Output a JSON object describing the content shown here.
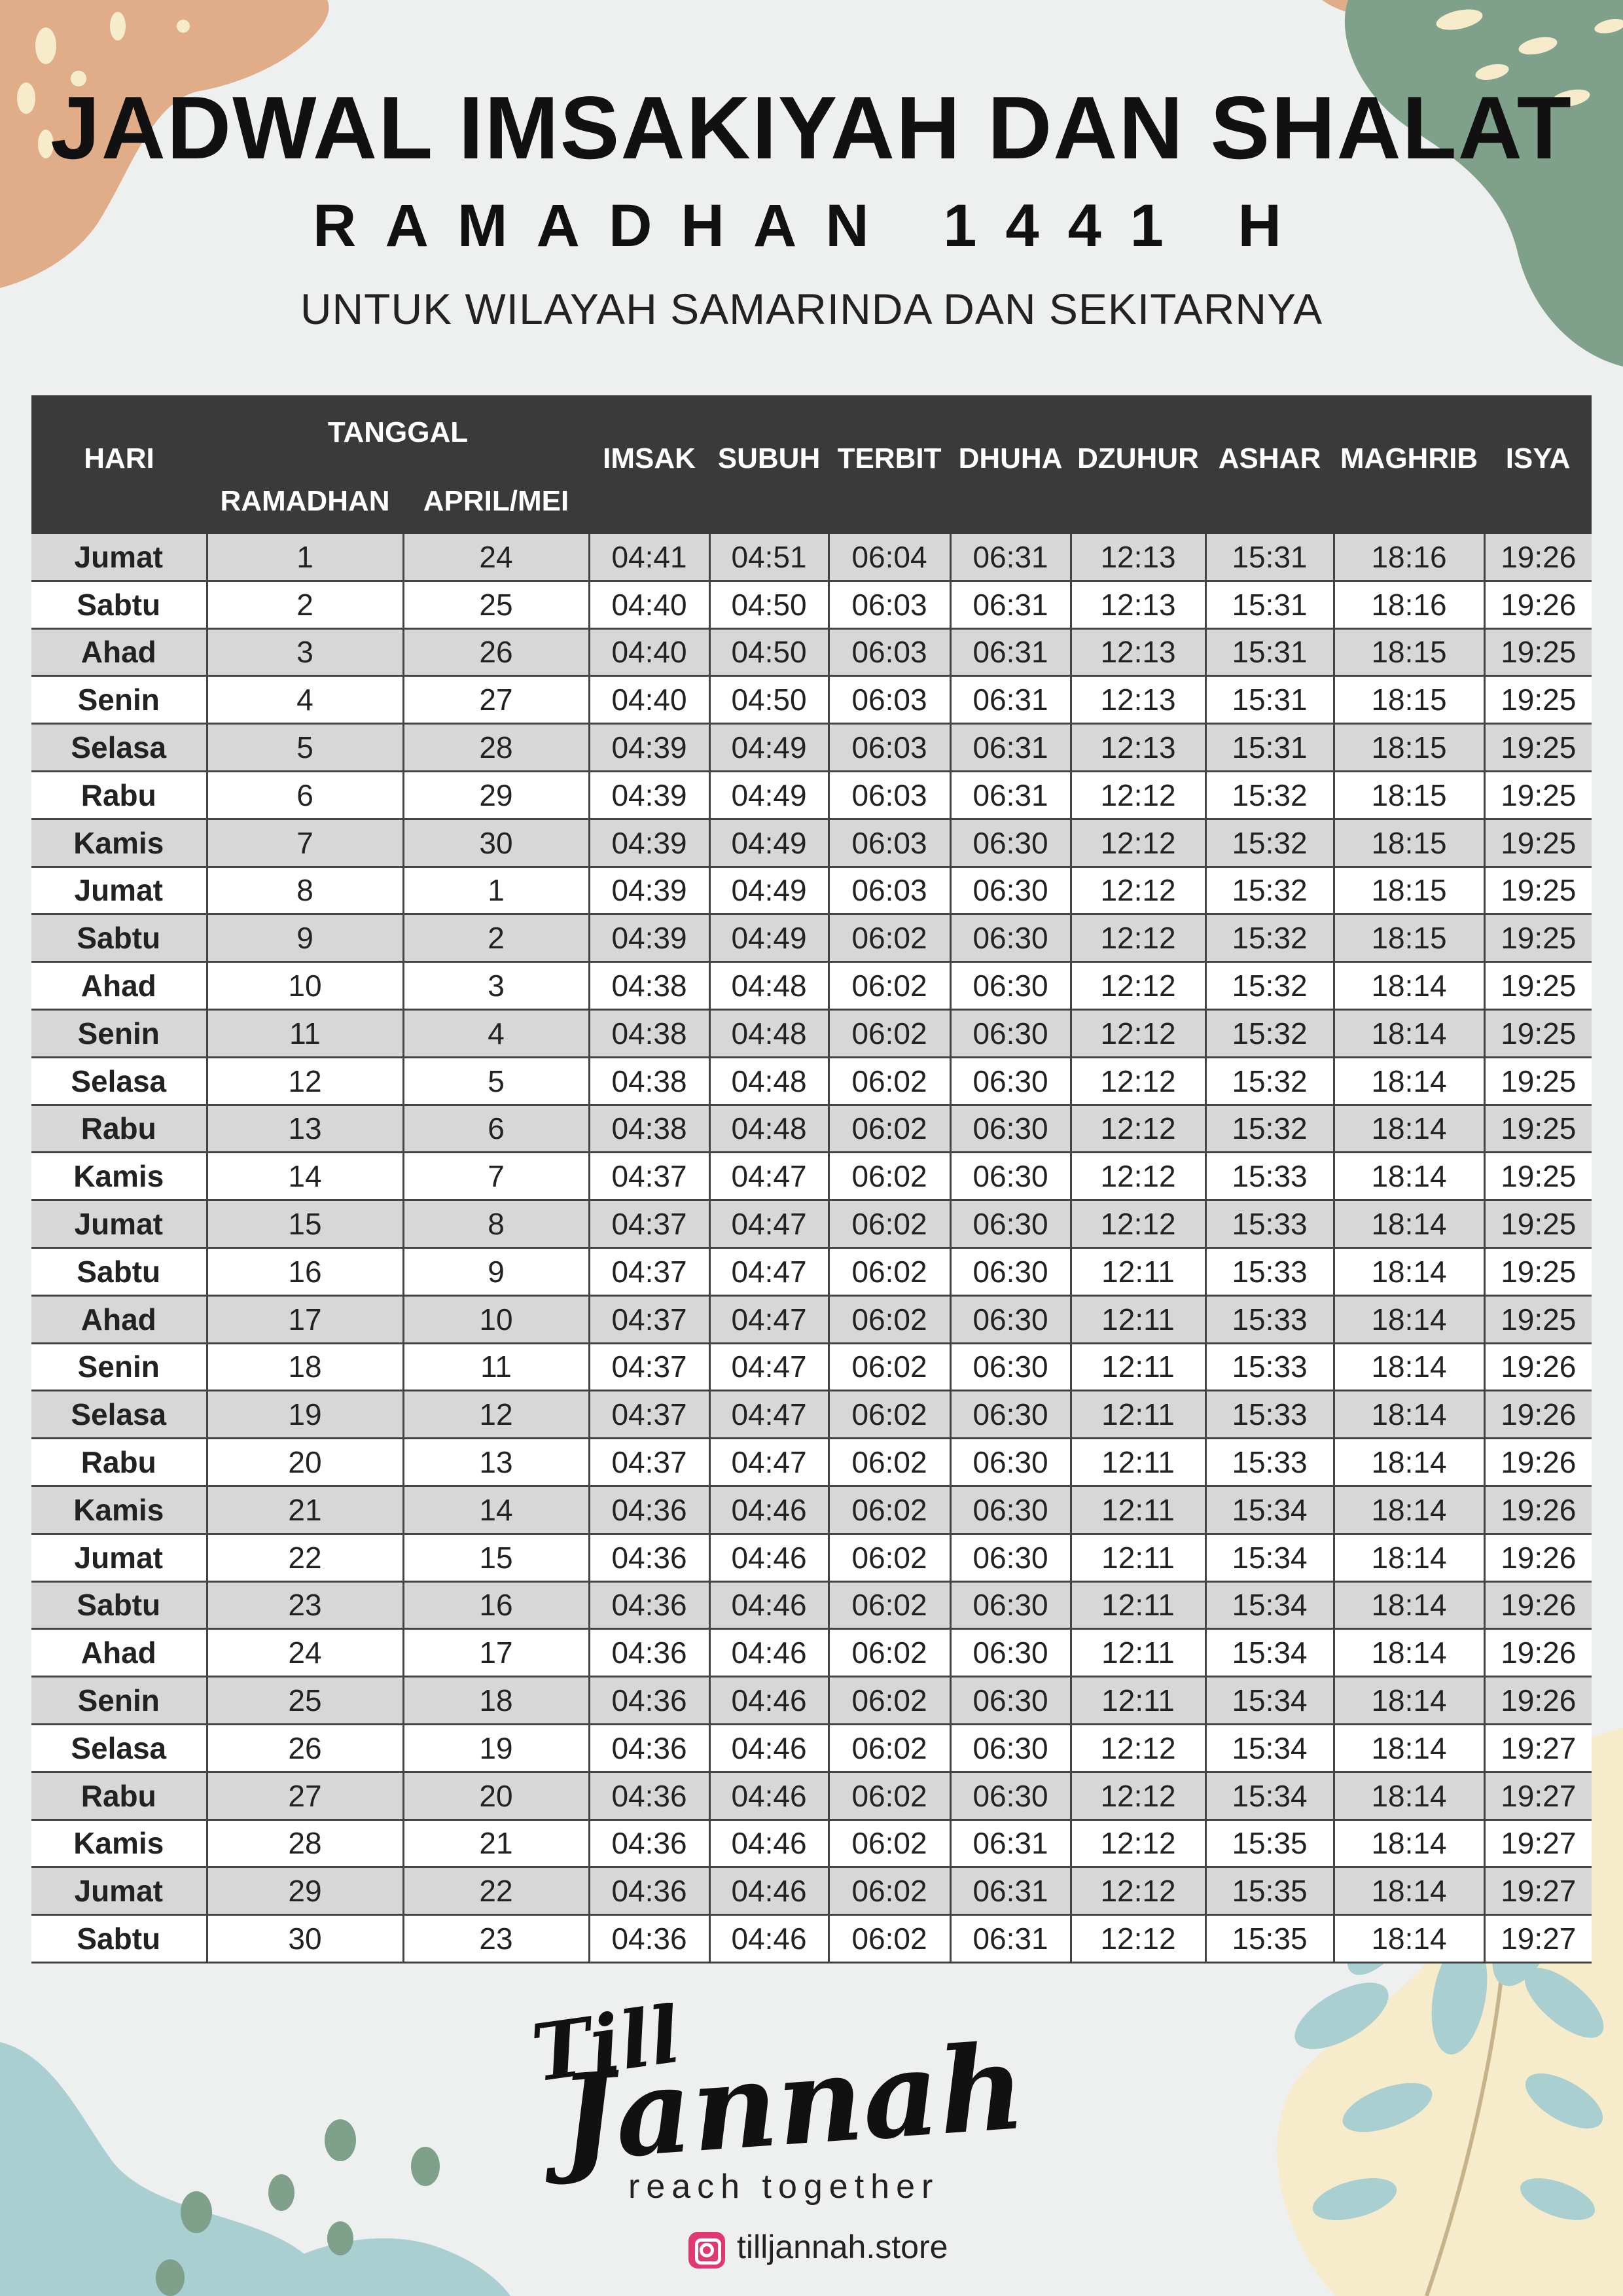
{
  "title": "JADWAL IMSAKIYAH DAN SHALAT",
  "subtitle": "RAMADHAN 1441 H",
  "region": "UNTUK WILAYAH SAMARINDA DAN SEKITARNYA",
  "table": {
    "headers": {
      "hari": "HARI",
      "tanggal": "TANGGAL",
      "ramadhan": "RAMADHAN",
      "aprilmei": "APRIL/MEI",
      "imsak": "IMSAK",
      "subuh": "SUBUH",
      "terbit": "TERBIT",
      "dhuha": "DHUHA",
      "dzuhur": "DZUHUR",
      "ashar": "ASHAR",
      "maghrib": "MAGHRIB",
      "isya": "ISYA"
    },
    "rows": [
      [
        "Jumat",
        "1",
        "24",
        "04:41",
        "04:51",
        "06:04",
        "06:31",
        "12:13",
        "15:31",
        "18:16",
        "19:26"
      ],
      [
        "Sabtu",
        "2",
        "25",
        "04:40",
        "04:50",
        "06:03",
        "06:31",
        "12:13",
        "15:31",
        "18:16",
        "19:26"
      ],
      [
        "Ahad",
        "3",
        "26",
        "04:40",
        "04:50",
        "06:03",
        "06:31",
        "12:13",
        "15:31",
        "18:15",
        "19:25"
      ],
      [
        "Senin",
        "4",
        "27",
        "04:40",
        "04:50",
        "06:03",
        "06:31",
        "12:13",
        "15:31",
        "18:15",
        "19:25"
      ],
      [
        "Selasa",
        "5",
        "28",
        "04:39",
        "04:49",
        "06:03",
        "06:31",
        "12:13",
        "15:31",
        "18:15",
        "19:25"
      ],
      [
        "Rabu",
        "6",
        "29",
        "04:39",
        "04:49",
        "06:03",
        "06:31",
        "12:12",
        "15:32",
        "18:15",
        "19:25"
      ],
      [
        "Kamis",
        "7",
        "30",
        "04:39",
        "04:49",
        "06:03",
        "06:30",
        "12:12",
        "15:32",
        "18:15",
        "19:25"
      ],
      [
        "Jumat",
        "8",
        "1",
        "04:39",
        "04:49",
        "06:03",
        "06:30",
        "12:12",
        "15:32",
        "18:15",
        "19:25"
      ],
      [
        "Sabtu",
        "9",
        "2",
        "04:39",
        "04:49",
        "06:02",
        "06:30",
        "12:12",
        "15:32",
        "18:15",
        "19:25"
      ],
      [
        "Ahad",
        "10",
        "3",
        "04:38",
        "04:48",
        "06:02",
        "06:30",
        "12:12",
        "15:32",
        "18:14",
        "19:25"
      ],
      [
        "Senin",
        "11",
        "4",
        "04:38",
        "04:48",
        "06:02",
        "06:30",
        "12:12",
        "15:32",
        "18:14",
        "19:25"
      ],
      [
        "Selasa",
        "12",
        "5",
        "04:38",
        "04:48",
        "06:02",
        "06:30",
        "12:12",
        "15:32",
        "18:14",
        "19:25"
      ],
      [
        "Rabu",
        "13",
        "6",
        "04:38",
        "04:48",
        "06:02",
        "06:30",
        "12:12",
        "15:32",
        "18:14",
        "19:25"
      ],
      [
        "Kamis",
        "14",
        "7",
        "04:37",
        "04:47",
        "06:02",
        "06:30",
        "12:12",
        "15:33",
        "18:14",
        "19:25"
      ],
      [
        "Jumat",
        "15",
        "8",
        "04:37",
        "04:47",
        "06:02",
        "06:30",
        "12:12",
        "15:33",
        "18:14",
        "19:25"
      ],
      [
        "Sabtu",
        "16",
        "9",
        "04:37",
        "04:47",
        "06:02",
        "06:30",
        "12:11",
        "15:33",
        "18:14",
        "19:25"
      ],
      [
        "Ahad",
        "17",
        "10",
        "04:37",
        "04:47",
        "06:02",
        "06:30",
        "12:11",
        "15:33",
        "18:14",
        "19:25"
      ],
      [
        "Senin",
        "18",
        "11",
        "04:37",
        "04:47",
        "06:02",
        "06:30",
        "12:11",
        "15:33",
        "18:14",
        "19:26"
      ],
      [
        "Selasa",
        "19",
        "12",
        "04:37",
        "04:47",
        "06:02",
        "06:30",
        "12:11",
        "15:33",
        "18:14",
        "19:26"
      ],
      [
        "Rabu",
        "20",
        "13",
        "04:37",
        "04:47",
        "06:02",
        "06:30",
        "12:11",
        "15:33",
        "18:14",
        "19:26"
      ],
      [
        "Kamis",
        "21",
        "14",
        "04:36",
        "04:46",
        "06:02",
        "06:30",
        "12:11",
        "15:34",
        "18:14",
        "19:26"
      ],
      [
        "Jumat",
        "22",
        "15",
        "04:36",
        "04:46",
        "06:02",
        "06:30",
        "12:11",
        "15:34",
        "18:14",
        "19:26"
      ],
      [
        "Sabtu",
        "23",
        "16",
        "04:36",
        "04:46",
        "06:02",
        "06:30",
        "12:11",
        "15:34",
        "18:14",
        "19:26"
      ],
      [
        "Ahad",
        "24",
        "17",
        "04:36",
        "04:46",
        "06:02",
        "06:30",
        "12:11",
        "15:34",
        "18:14",
        "19:26"
      ],
      [
        "Senin",
        "25",
        "18",
        "04:36",
        "04:46",
        "06:02",
        "06:30",
        "12:11",
        "15:34",
        "18:14",
        "19:26"
      ],
      [
        "Selasa",
        "26",
        "19",
        "04:36",
        "04:46",
        "06:02",
        "06:30",
        "12:12",
        "15:34",
        "18:14",
        "19:27"
      ],
      [
        "Rabu",
        "27",
        "20",
        "04:36",
        "04:46",
        "06:02",
        "06:30",
        "12:12",
        "15:34",
        "18:14",
        "19:27"
      ],
      [
        "Kamis",
        "28",
        "21",
        "04:36",
        "04:46",
        "06:02",
        "06:31",
        "12:12",
        "15:35",
        "18:14",
        "19:27"
      ],
      [
        "Jumat",
        "29",
        "22",
        "04:36",
        "04:46",
        "06:02",
        "06:31",
        "12:12",
        "15:35",
        "18:14",
        "19:27"
      ],
      [
        "Sabtu",
        "30",
        "23",
        "04:36",
        "04:46",
        "06:02",
        "06:31",
        "12:12",
        "15:35",
        "18:14",
        "19:27"
      ]
    ]
  },
  "brand": {
    "logo_top": "Till",
    "logo_main": "Jannah",
    "tagline": "reach together",
    "handle": "tilljannah.store",
    "handle_icon": "instagram-icon"
  },
  "colors": {
    "background": "#eef0ef",
    "header_bg": "#3a3a3a",
    "row_alt": "#d7d7d7",
    "peach": "#e0ad88",
    "sage": "#7fa08a",
    "teal": "#a9cfd0",
    "cream": "#f6eccc"
  }
}
